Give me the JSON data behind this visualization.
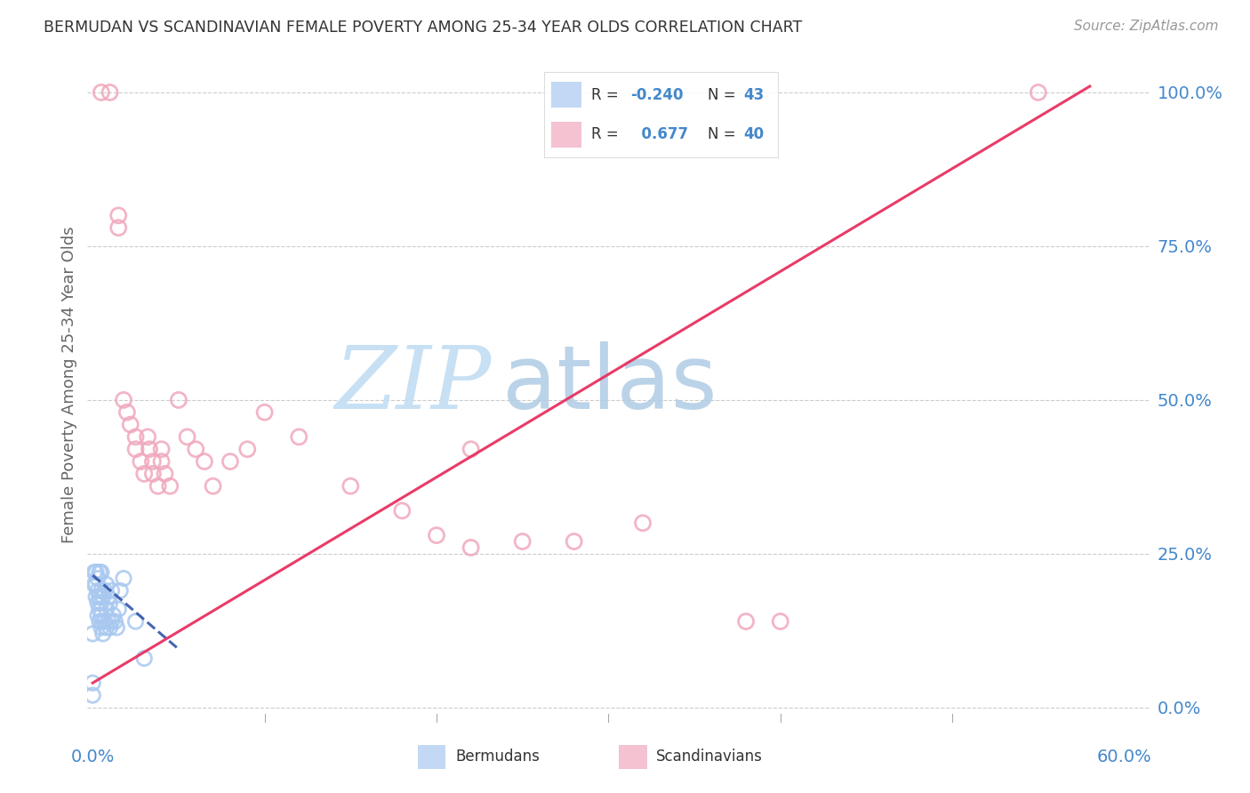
{
  "title": "BERMUDAN VS SCANDINAVIAN FEMALE POVERTY AMONG 25-34 YEAR OLDS CORRELATION CHART",
  "source": "Source: ZipAtlas.com",
  "ylabel": "Female Poverty Among 25-34 Year Olds",
  "ylim": [
    -0.01,
    1.06
  ],
  "xlim": [
    -0.003,
    0.615
  ],
  "yticks": [
    0.0,
    0.25,
    0.5,
    0.75,
    1.0
  ],
  "ytick_labels": [
    "0.0%",
    "25.0%",
    "50.0%",
    "75.0%",
    "100.0%"
  ],
  "xtick_vals": [
    0.0,
    0.1,
    0.2,
    0.3,
    0.4,
    0.5,
    0.6
  ],
  "R_blue": -0.24,
  "N_blue": 43,
  "R_pink": 0.677,
  "N_pink": 40,
  "blue_scatter_color": "#a8c8f0",
  "pink_scatter_color": "#f0a8bc",
  "blue_line_color": "#3355aa",
  "pink_line_color": "#e83060",
  "grid_color": "#cccccc",
  "axis_color": "#4488cc",
  "title_color": "#333333",
  "watermark_ZIP_color": "#c8e0f4",
  "watermark_atlas_color": "#b0cce4",
  "bermudans_x": [
    0.0,
    0.0,
    0.0,
    0.001,
    0.001,
    0.002,
    0.002,
    0.002,
    0.003,
    0.003,
    0.003,
    0.003,
    0.004,
    0.004,
    0.004,
    0.004,
    0.005,
    0.005,
    0.005,
    0.005,
    0.005,
    0.006,
    0.006,
    0.006,
    0.007,
    0.007,
    0.008,
    0.008,
    0.008,
    0.009,
    0.009,
    0.01,
    0.01,
    0.011,
    0.011,
    0.012,
    0.013,
    0.014,
    0.015,
    0.016,
    0.018,
    0.025,
    0.03
  ],
  "bermudans_y": [
    0.02,
    0.04,
    0.12,
    0.2,
    0.22,
    0.18,
    0.2,
    0.22,
    0.15,
    0.17,
    0.19,
    0.21,
    0.14,
    0.16,
    0.18,
    0.22,
    0.13,
    0.15,
    0.17,
    0.19,
    0.22,
    0.12,
    0.14,
    0.18,
    0.14,
    0.19,
    0.13,
    0.16,
    0.2,
    0.14,
    0.18,
    0.13,
    0.17,
    0.14,
    0.19,
    0.15,
    0.14,
    0.13,
    0.16,
    0.19,
    0.21,
    0.14,
    0.08
  ],
  "scandinavians_x": [
    0.005,
    0.01,
    0.015,
    0.018,
    0.02,
    0.022,
    0.025,
    0.025,
    0.028,
    0.03,
    0.032,
    0.033,
    0.035,
    0.035,
    0.038,
    0.04,
    0.04,
    0.042,
    0.045,
    0.05,
    0.055,
    0.06,
    0.065,
    0.07,
    0.08,
    0.09,
    0.1,
    0.12,
    0.15,
    0.18,
    0.2,
    0.22,
    0.25,
    0.28,
    0.32,
    0.38,
    0.4,
    0.22,
    0.015,
    0.55
  ],
  "scandinavians_y": [
    1.0,
    1.0,
    0.8,
    0.5,
    0.48,
    0.46,
    0.44,
    0.42,
    0.4,
    0.38,
    0.44,
    0.42,
    0.4,
    0.38,
    0.36,
    0.42,
    0.4,
    0.38,
    0.36,
    0.5,
    0.44,
    0.42,
    0.4,
    0.36,
    0.4,
    0.42,
    0.48,
    0.44,
    0.36,
    0.32,
    0.28,
    0.26,
    0.27,
    0.27,
    0.3,
    0.14,
    0.14,
    0.42,
    0.78,
    1.0
  ],
  "blue_line_x0": 0.0,
  "blue_line_x1": 0.05,
  "blue_line_y0": 0.215,
  "blue_line_y1": 0.095,
  "pink_line_x0": 0.0,
  "pink_line_x1": 0.58,
  "pink_line_y0": 0.04,
  "pink_line_y1": 1.01
}
